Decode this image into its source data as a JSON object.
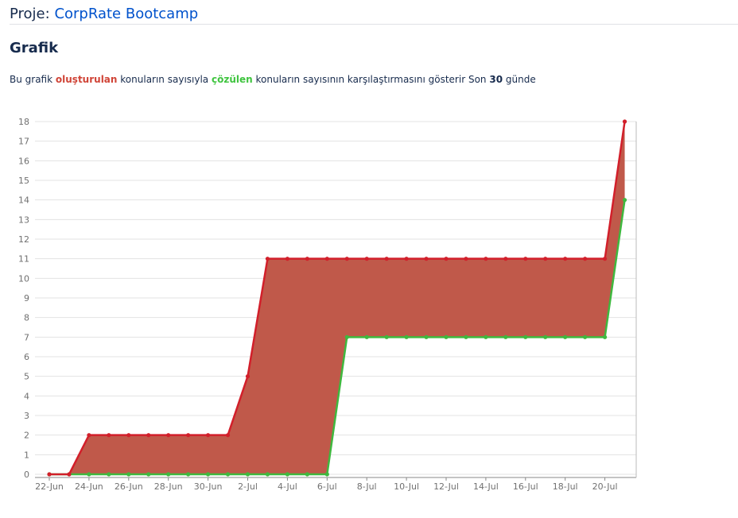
{
  "header": {
    "label": "Proje:",
    "project_name": "CorpRate Bootcamp"
  },
  "section": {
    "title": "Grafik"
  },
  "description": {
    "part1": "Bu grafik",
    "created": "oluşturulan",
    "part2": "konuların sayısıyla",
    "resolved": "çözülen",
    "part3": "konuların sayısının karşılaştırmasını gösterir Son",
    "days": "30",
    "part4": "günde"
  },
  "chart_data": {
    "type": "area",
    "x": [
      "22-Jun",
      "23-Jun",
      "24-Jun",
      "25-Jun",
      "26-Jun",
      "27-Jun",
      "28-Jun",
      "29-Jun",
      "30-Jun",
      "1-Jul",
      "2-Jul",
      "3-Jul",
      "4-Jul",
      "5-Jul",
      "6-Jul",
      "7-Jul",
      "8-Jul",
      "9-Jul",
      "10-Jul",
      "11-Jul",
      "12-Jul",
      "13-Jul",
      "14-Jul",
      "15-Jul",
      "16-Jul",
      "17-Jul",
      "18-Jul",
      "19-Jul",
      "20-Jul",
      "21-Jul"
    ],
    "x_tick_labels": [
      "22-Jun",
      "24-Jun",
      "26-Jun",
      "28-Jun",
      "30-Jun",
      "2-Jul",
      "4-Jul",
      "6-Jul",
      "8-Jul",
      "10-Jul",
      "12-Jul",
      "14-Jul",
      "16-Jul",
      "18-Jul",
      "20-Jul"
    ],
    "series": [
      {
        "key": "created",
        "color": "#d21f2a",
        "values": [
          0,
          0,
          2,
          2,
          2,
          2,
          2,
          2,
          2,
          2,
          5,
          11,
          11,
          11,
          11,
          11,
          11,
          11,
          11,
          11,
          11,
          11,
          11,
          11,
          11,
          11,
          11,
          11,
          11,
          18
        ]
      },
      {
        "key": "resolved",
        "color": "#3fb83f",
        "values": [
          0,
          0,
          0,
          0,
          0,
          0,
          0,
          0,
          0,
          0,
          0,
          0,
          0,
          0,
          0,
          7,
          7,
          7,
          7,
          7,
          7,
          7,
          7,
          7,
          7,
          7,
          7,
          7,
          7,
          14
        ]
      }
    ],
    "fill_color": "#c0594a",
    "ylim": [
      0,
      18
    ],
    "y_ticks": [
      0,
      1,
      2,
      3,
      4,
      5,
      6,
      7,
      8,
      9,
      10,
      11,
      12,
      13,
      14,
      15,
      16,
      17,
      18
    ],
    "grid": true,
    "legend": "none"
  }
}
